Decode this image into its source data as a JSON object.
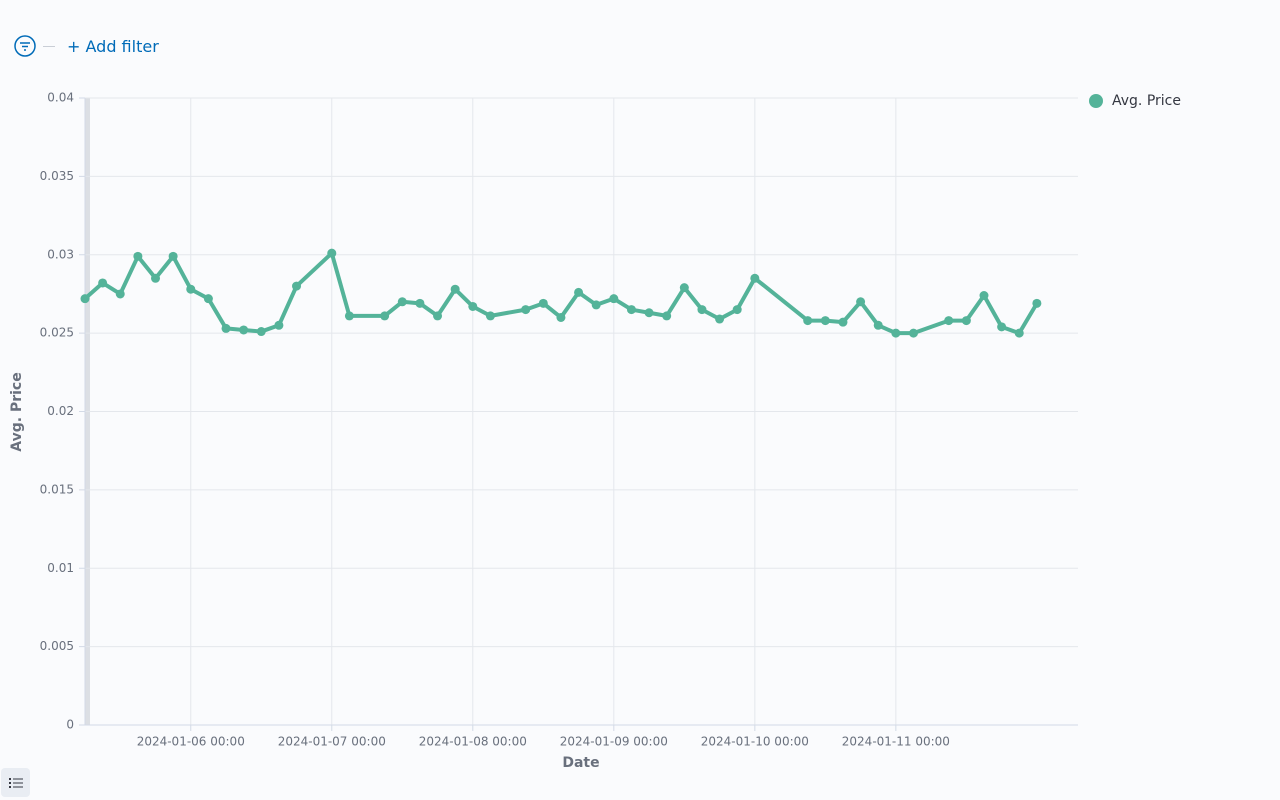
{
  "ui": {
    "add_filter": "+ Add filter"
  },
  "chart_data": {
    "type": "line",
    "x_label": "Date",
    "y_label": "Avg. Price",
    "legend": "top-right",
    "grid": true,
    "xlim": [
      "2024-01-05 06:00",
      "2024-01-12 07:00"
    ],
    "xticks": [
      "2024-01-06 00:00",
      "2024-01-07 00:00",
      "2024-01-08 00:00",
      "2024-01-09 00:00",
      "2024-01-10 00:00",
      "2024-01-11 00:00"
    ],
    "ylim": [
      0,
      0.04
    ],
    "yticks": [
      0,
      0.005,
      0.01,
      0.015,
      0.02,
      0.025,
      0.03,
      0.035,
      0.04
    ],
    "x": [
      "2024-01-05 06:00",
      "2024-01-05 09:00",
      "2024-01-05 12:00",
      "2024-01-05 15:00",
      "2024-01-05 18:00",
      "2024-01-05 21:00",
      "2024-01-06 00:00",
      "2024-01-06 03:00",
      "2024-01-06 06:00",
      "2024-01-06 09:00",
      "2024-01-06 12:00",
      "2024-01-06 15:00",
      "2024-01-06 18:00",
      "2024-01-07 00:00",
      "2024-01-07 03:00",
      "2024-01-07 09:00",
      "2024-01-07 12:00",
      "2024-01-07 15:00",
      "2024-01-07 18:00",
      "2024-01-07 21:00",
      "2024-01-08 00:00",
      "2024-01-08 03:00",
      "2024-01-08 09:00",
      "2024-01-08 12:00",
      "2024-01-08 15:00",
      "2024-01-08 18:00",
      "2024-01-08 21:00",
      "2024-01-09 00:00",
      "2024-01-09 03:00",
      "2024-01-09 06:00",
      "2024-01-09 09:00",
      "2024-01-09 12:00",
      "2024-01-09 15:00",
      "2024-01-09 18:00",
      "2024-01-09 21:00",
      "2024-01-10 00:00",
      "2024-01-10 09:00",
      "2024-01-10 12:00",
      "2024-01-10 15:00",
      "2024-01-10 18:00",
      "2024-01-10 21:00",
      "2024-01-11 00:00",
      "2024-01-11 03:00",
      "2024-01-11 09:00",
      "2024-01-11 12:00",
      "2024-01-11 15:00",
      "2024-01-11 18:00",
      "2024-01-11 21:00",
      "2024-01-12 00:00"
    ],
    "series": [
      {
        "name": "Avg. Price",
        "color": "#54b399",
        "values": [
          0.0272,
          0.0282,
          0.0275,
          0.0299,
          0.0285,
          0.0299,
          0.0278,
          0.0272,
          0.0253,
          0.0252,
          0.0251,
          0.0255,
          0.028,
          0.0301,
          0.0261,
          0.0261,
          0.027,
          0.0269,
          0.0261,
          0.0278,
          0.0267,
          0.0261,
          0.0265,
          0.0269,
          0.026,
          0.0276,
          0.0268,
          0.0272,
          0.0265,
          0.0263,
          0.0261,
          0.0279,
          0.0265,
          0.0259,
          0.0265,
          0.0285,
          0.0258,
          0.0258,
          0.0257,
          0.027,
          0.0255,
          0.025,
          0.025,
          0.0258,
          0.0258,
          0.0274,
          0.0254,
          0.025,
          0.0269
        ]
      }
    ]
  }
}
